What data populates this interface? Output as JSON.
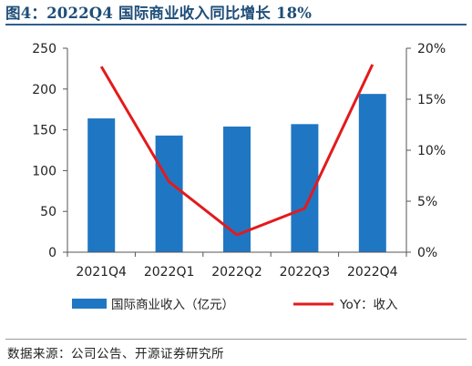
{
  "figure": {
    "title": "图4：2022Q4 国际商业收入同比增长 18%",
    "source": "数据来源：公司公告、开源证券研究所"
  },
  "chart_data": {
    "type": "bar",
    "title": "",
    "xlabel": "",
    "ylabel": "",
    "categories": [
      "2021Q4",
      "2022Q1",
      "2022Q2",
      "2022Q3",
      "2022Q4"
    ],
    "series": [
      {
        "name": "国际商业收入（亿元）",
        "type": "bar",
        "axis": "left",
        "color": "#1f77c4",
        "values": [
          164,
          143,
          154,
          157,
          194
        ]
      },
      {
        "name": "YoY：收入",
        "type": "line",
        "axis": "right",
        "color": "#e31a1c",
        "values": [
          18.2,
          6.9,
          1.7,
          4.3,
          18.4
        ]
      }
    ],
    "ylim": [
      0,
      250
    ],
    "yticks": [
      "0",
      "50",
      "100",
      "150",
      "200",
      "250"
    ],
    "y2lim": [
      0,
      20
    ],
    "y2ticks": [
      "0%",
      "5%",
      "10%",
      "15%",
      "20%"
    ],
    "grid": false,
    "legend_position": "bottom"
  }
}
